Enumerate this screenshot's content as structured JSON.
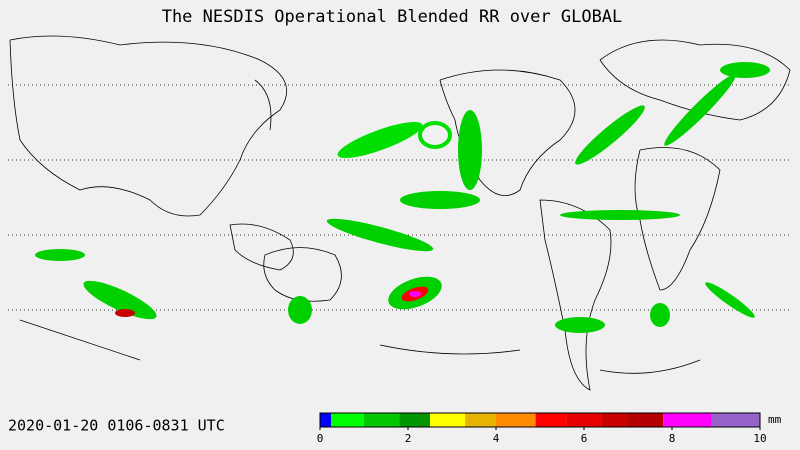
{
  "header": {
    "title": "The NESDIS  Operational  Blended RR over GLOBAL"
  },
  "footer": {
    "timestamp": "2020-01-20  0106-0831  UTC"
  },
  "legend": {
    "unit": "mm",
    "lim": [
      0,
      10
    ],
    "ticks": [
      0,
      2,
      4,
      6,
      8,
      10
    ],
    "edges": [
      0,
      0.25,
      1,
      1.8,
      2.5,
      3.3,
      4,
      4.9,
      5.6,
      6.4,
      7,
      7.8,
      8.9,
      10
    ],
    "colors": [
      "#0000ff",
      "#00ff00",
      "#00c800",
      "#009600",
      "#ffff00",
      "#e6b400",
      "#ff8c00",
      "#ff0000",
      "#e60000",
      "#c80000",
      "#b40000",
      "#ff00ff",
      "#9664c8"
    ]
  }
}
